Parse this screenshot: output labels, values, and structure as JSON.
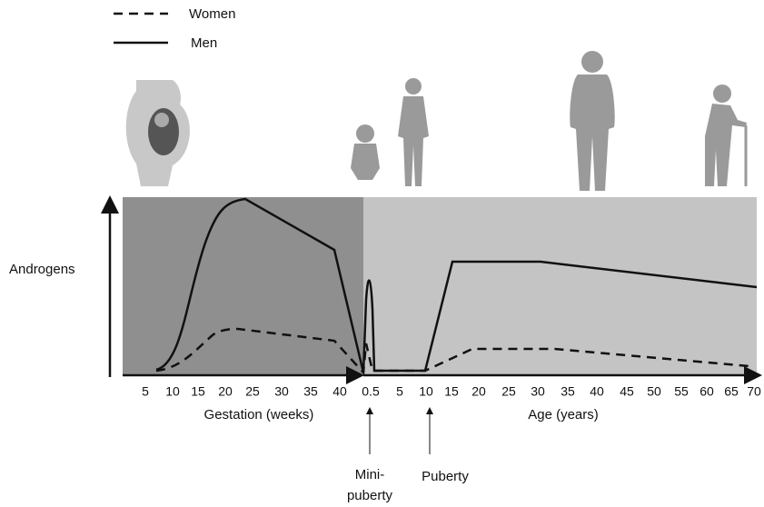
{
  "legend": {
    "items": [
      "Women",
      "Men"
    ]
  },
  "y_axis_label": "Androgens",
  "gestation_ticks": [
    "5",
    "10",
    "15",
    "20",
    "25",
    "30",
    "35",
    "40"
  ],
  "age_ticks": [
    "0.5",
    "5",
    "10",
    "15",
    "20",
    "25",
    "30",
    "35",
    "40",
    "45",
    "50",
    "55",
    "60",
    "65",
    "70"
  ],
  "gestation_title": "Gestation (weeks)",
  "age_title": "Age (years)",
  "annotations": {
    "minipuberty": [
      "Mini-",
      "puberty"
    ],
    "puberty": "Puberty"
  }
}
